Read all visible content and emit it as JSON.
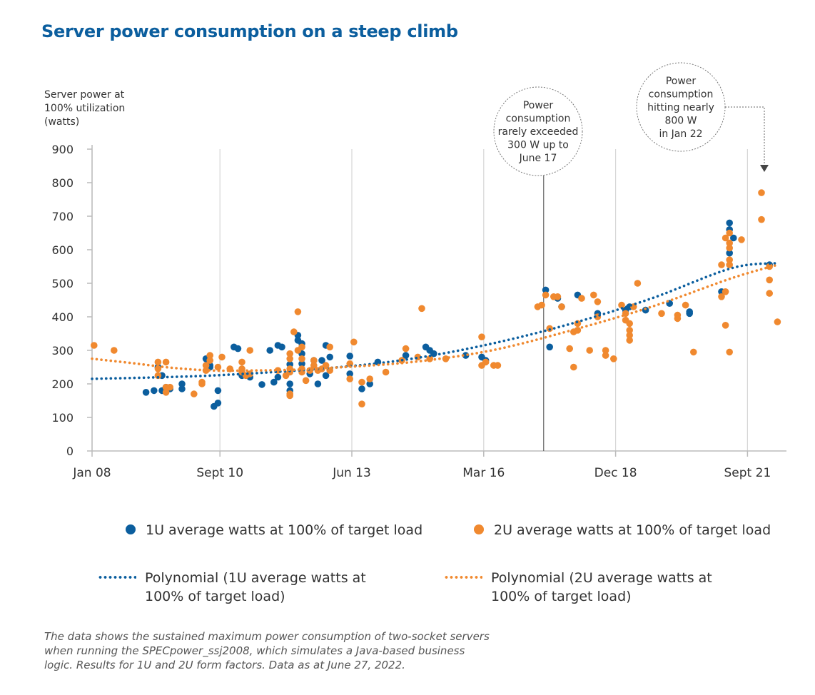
{
  "title": "Server power consumption on a steep climb",
  "ylabel_lines": [
    "Server power at",
    "100% utilization",
    "(watts)"
  ],
  "colors": {
    "series_1u": "#0b5e9e",
    "series_2u": "#f0892f",
    "title": "#0b5e9e"
  },
  "legend": {
    "s1": "1U average watts at 100% of target load",
    "s2": "2U average watts at 100% of target load",
    "p1_line1": "Polynomial (1U average watts at",
    "p1_line2": "100% of target load)",
    "p2_line1": "Polynomial (2U average watts at",
    "p2_line2": "100% of target load)"
  },
  "note_lines": [
    "The data shows the sustained maximum power consumption of two-socket servers",
    "when running the SPECpower_ssj2008, which simulates a Java-based business",
    "logic. Results for 1U and 2U form factors. Data as at June 27, 2022."
  ],
  "chart_data": {
    "type": "scatter",
    "title": "Server power consumption on a steep climb",
    "ylabel": "Server power at 100% utilization (watts)",
    "xlabel": "",
    "ylim": [
      0,
      900
    ],
    "yticks": [
      0,
      100,
      200,
      300,
      400,
      500,
      600,
      700,
      800,
      900
    ],
    "x_unit": "months since Jan 2008",
    "xlim": [
      0,
      176
    ],
    "xticks": [
      {
        "label": "Jan 08",
        "x": 0
      },
      {
        "label": "Sept 10",
        "x": 32
      },
      {
        "label": "Jun 13",
        "x": 65
      },
      {
        "label": "Mar 16",
        "x": 98
      },
      {
        "label": "Dec 18",
        "x": 131
      },
      {
        "label": "Sept 21",
        "x": 164
      }
    ],
    "annotations": [
      {
        "text_lines": [
          "Power",
          "consumption",
          "rarely exceeded",
          "300 W up to",
          "June 17"
        ],
        "x": 113
      },
      {
        "text_lines": [
          "Power",
          "consumption",
          "hitting nearly",
          "800 W",
          "in Jan 22"
        ],
        "x": 168
      }
    ],
    "series": [
      {
        "name": "1U average watts at 100% of target load",
        "points": [
          [
            13.5,
            175
          ],
          [
            15.5,
            180
          ],
          [
            16.5,
            250
          ],
          [
            17.5,
            225
          ],
          [
            17.5,
            180
          ],
          [
            18.5,
            190
          ],
          [
            19.5,
            185
          ],
          [
            22.5,
            185
          ],
          [
            22.5,
            200
          ],
          [
            28.5,
            275
          ],
          [
            29.5,
            255
          ],
          [
            29.5,
            250
          ],
          [
            30.5,
            133
          ],
          [
            31.5,
            143
          ],
          [
            31.5,
            180
          ],
          [
            35.5,
            310
          ],
          [
            36.5,
            305
          ],
          [
            37.5,
            225
          ],
          [
            39.5,
            220
          ],
          [
            42.5,
            198
          ],
          [
            44.5,
            300
          ],
          [
            45.5,
            205
          ],
          [
            46.5,
            220
          ],
          [
            46.5,
            315
          ],
          [
            47.5,
            310
          ],
          [
            49.5,
            258
          ],
          [
            49.5,
            200
          ],
          [
            49.5,
            180
          ],
          [
            51.5,
            345
          ],
          [
            51.5,
            330
          ],
          [
            52.5,
            320
          ],
          [
            52.5,
            290
          ],
          [
            52.5,
            260
          ],
          [
            54.5,
            230
          ],
          [
            55.5,
            270
          ],
          [
            56.5,
            200
          ],
          [
            57.5,
            270
          ],
          [
            58.5,
            225
          ],
          [
            58.5,
            315
          ],
          [
            59.5,
            280
          ],
          [
            64.5,
            230
          ],
          [
            64.5,
            283
          ],
          [
            67.5,
            185
          ],
          [
            69.5,
            200
          ],
          [
            71.5,
            265
          ],
          [
            78.5,
            285
          ],
          [
            83.5,
            310
          ],
          [
            84.5,
            300
          ],
          [
            85.5,
            290
          ],
          [
            93.5,
            285
          ],
          [
            97.5,
            280
          ],
          [
            98.5,
            270
          ],
          [
            113.5,
            480
          ],
          [
            114.5,
            310
          ],
          [
            116.5,
            455
          ],
          [
            117.5,
            430
          ],
          [
            121.5,
            465
          ],
          [
            126.5,
            410
          ],
          [
            133.5,
            420
          ],
          [
            134.5,
            430
          ],
          [
            138.5,
            420
          ],
          [
            144.5,
            440
          ],
          [
            149.5,
            415
          ],
          [
            149.5,
            410
          ],
          [
            157.5,
            475
          ],
          [
            159.5,
            680
          ],
          [
            159.5,
            660
          ],
          [
            159.5,
            590
          ],
          [
            160.5,
            635
          ],
          [
            169.5,
            555
          ]
        ]
      },
      {
        "name": "2U average watts at 100% of target load",
        "points": [
          [
            0.5,
            315
          ],
          [
            5.5,
            300
          ],
          [
            16.5,
            265
          ],
          [
            16.5,
            245
          ],
          [
            16.5,
            225
          ],
          [
            18.5,
            265
          ],
          [
            18.5,
            190
          ],
          [
            18.5,
            175
          ],
          [
            19.5,
            190
          ],
          [
            25.5,
            170
          ],
          [
            27.5,
            205
          ],
          [
            27.5,
            200
          ],
          [
            28.5,
            255
          ],
          [
            28.5,
            240
          ],
          [
            29.5,
            285
          ],
          [
            29.5,
            270
          ],
          [
            31.5,
            250
          ],
          [
            32.5,
            280
          ],
          [
            34.5,
            245
          ],
          [
            37.5,
            265
          ],
          [
            37.5,
            245
          ],
          [
            37.5,
            235
          ],
          [
            38.5,
            225
          ],
          [
            39.5,
            230
          ],
          [
            39.5,
            300
          ],
          [
            46.5,
            240
          ],
          [
            48.5,
            225
          ],
          [
            49.5,
            290
          ],
          [
            49.5,
            275
          ],
          [
            49.5,
            245
          ],
          [
            49.5,
            235
          ],
          [
            49.5,
            170
          ],
          [
            49.5,
            165
          ],
          [
            50.5,
            355
          ],
          [
            51.5,
            415
          ],
          [
            51.5,
            300
          ],
          [
            52.5,
            310
          ],
          [
            52.5,
            275
          ],
          [
            52.5,
            245
          ],
          [
            52.5,
            235
          ],
          [
            53.5,
            210
          ],
          [
            54.5,
            240
          ],
          [
            55.5,
            270
          ],
          [
            55.5,
            255
          ],
          [
            56.5,
            240
          ],
          [
            57.5,
            245
          ],
          [
            58.5,
            255
          ],
          [
            59.5,
            310
          ],
          [
            59.5,
            240
          ],
          [
            64.5,
            215
          ],
          [
            64.5,
            260
          ],
          [
            65.5,
            325
          ],
          [
            67.5,
            140
          ],
          [
            67.5,
            205
          ],
          [
            69.5,
            215
          ],
          [
            73.5,
            235
          ],
          [
            77.5,
            270
          ],
          [
            78.5,
            305
          ],
          [
            81.5,
            280
          ],
          [
            82.5,
            425
          ],
          [
            84.5,
            275
          ],
          [
            88.5,
            275
          ],
          [
            97.5,
            340
          ],
          [
            97.5,
            255
          ],
          [
            98.5,
            265
          ],
          [
            100.5,
            255
          ],
          [
            101.5,
            255
          ],
          [
            111.5,
            430
          ],
          [
            112.5,
            435
          ],
          [
            113.5,
            465
          ],
          [
            114.5,
            365
          ],
          [
            115.5,
            460
          ],
          [
            116.5,
            460
          ],
          [
            117.5,
            430
          ],
          [
            119.5,
            305
          ],
          [
            120.5,
            250
          ],
          [
            120.5,
            355
          ],
          [
            121.5,
            380
          ],
          [
            121.5,
            360
          ],
          [
            122.5,
            455
          ],
          [
            124.5,
            300
          ],
          [
            125.5,
            465
          ],
          [
            126.5,
            445
          ],
          [
            126.5,
            400
          ],
          [
            128.5,
            300
          ],
          [
            128.5,
            285
          ],
          [
            130.5,
            275
          ],
          [
            132.5,
            435
          ],
          [
            133.5,
            410
          ],
          [
            133.5,
            390
          ],
          [
            134.5,
            380
          ],
          [
            134.5,
            360
          ],
          [
            134.5,
            345
          ],
          [
            134.5,
            330
          ],
          [
            135.5,
            430
          ],
          [
            136.5,
            500
          ],
          [
            142.5,
            410
          ],
          [
            146.5,
            405
          ],
          [
            146.5,
            395
          ],
          [
            148.5,
            435
          ],
          [
            150.5,
            295
          ],
          [
            157.5,
            555
          ],
          [
            157.5,
            460
          ],
          [
            158.5,
            475
          ],
          [
            158.5,
            375
          ],
          [
            158.5,
            635
          ],
          [
            159.5,
            650
          ],
          [
            159.5,
            620
          ],
          [
            159.5,
            605
          ],
          [
            159.5,
            570
          ],
          [
            159.5,
            555
          ],
          [
            159.5,
            295
          ],
          [
            162.5,
            630
          ],
          [
            167.5,
            770
          ],
          [
            167.5,
            690
          ],
          [
            169.5,
            550
          ],
          [
            169.5,
            510
          ],
          [
            169.5,
            470
          ],
          [
            171.5,
            385
          ]
        ]
      }
    ],
    "trendlines": [
      {
        "name": "Polynomial (1U average watts at 100% of target load)",
        "points": [
          [
            0,
            215
          ],
          [
            30,
            225
          ],
          [
            60,
            248
          ],
          [
            80,
            275
          ],
          [
            100,
            320
          ],
          [
            120,
            380
          ],
          [
            140,
            455
          ],
          [
            160,
            545
          ],
          [
            171.5,
            560
          ]
        ]
      },
      {
        "name": "Polynomial (2U average watts at 100% of target load)",
        "points": [
          [
            0,
            275
          ],
          [
            10,
            262
          ],
          [
            20,
            248
          ],
          [
            30,
            240
          ],
          [
            40,
            240
          ],
          [
            50,
            242
          ],
          [
            60,
            248
          ],
          [
            80,
            265
          ],
          [
            100,
            300
          ],
          [
            120,
            360
          ],
          [
            140,
            430
          ],
          [
            160,
            515
          ],
          [
            171.5,
            555
          ]
        ]
      }
    ]
  }
}
